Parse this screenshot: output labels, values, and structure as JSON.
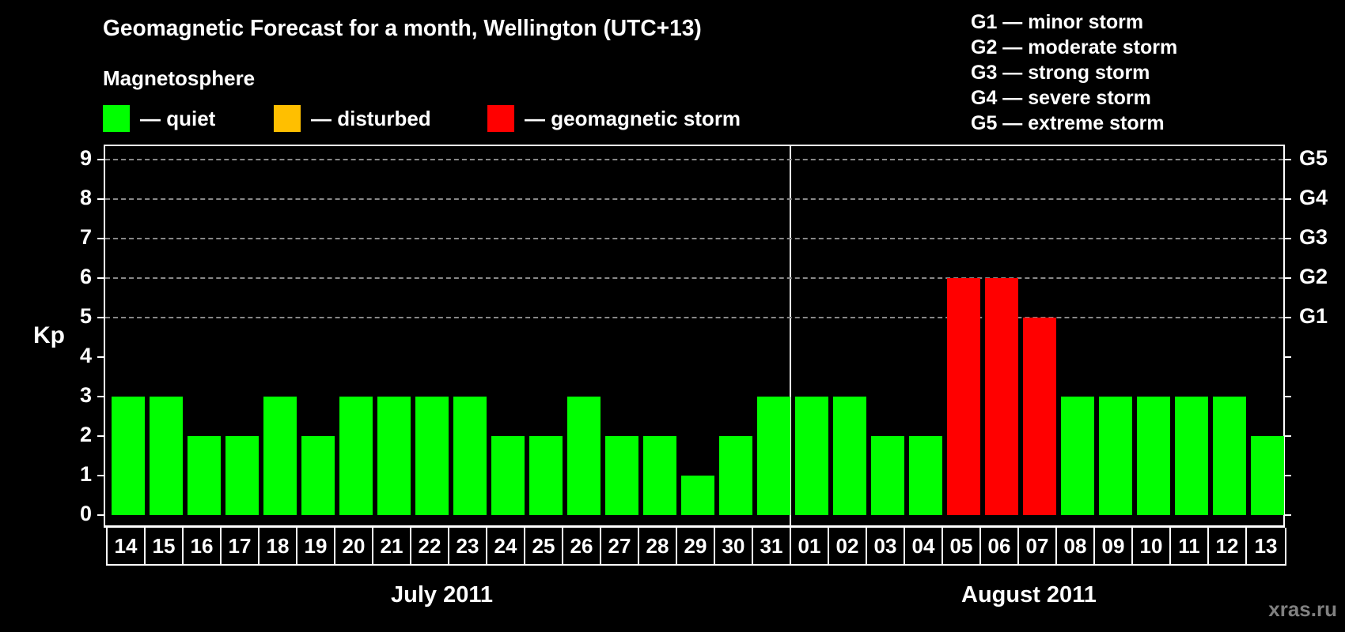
{
  "title": "Geomagnetic Forecast for a month, Wellington (UTC+13)",
  "subtitle": "Magnetosphere",
  "legend": [
    {
      "label": "— quiet",
      "color": "#00ff00"
    },
    {
      "label": "— disturbed",
      "color": "#ffbf00"
    },
    {
      "label": "— geomagnetic storm",
      "color": "#ff0000"
    }
  ],
  "storm_scale": [
    "G1 — minor storm",
    "G2 — moderate storm",
    "G3 — strong storm",
    "G4 — severe storm",
    "G5 — extreme storm"
  ],
  "y_axis_label": "Kp",
  "y_ticks": [
    "0",
    "1",
    "2",
    "3",
    "4",
    "5",
    "6",
    "7",
    "8",
    "9"
  ],
  "g_ticks": [
    {
      "label": "G1",
      "kp": 5
    },
    {
      "label": "G2",
      "kp": 6
    },
    {
      "label": "G3",
      "kp": 7
    },
    {
      "label": "G4",
      "kp": 8
    },
    {
      "label": "G5",
      "kp": 9
    }
  ],
  "months": [
    "July 2011",
    "August 2011"
  ],
  "watermark": "xras.ru",
  "colors": {
    "quiet": "#00ff00",
    "disturbed": "#ffbf00",
    "storm": "#ff0000"
  },
  "chart_data": {
    "type": "bar",
    "title": "Geomagnetic Forecast for a month, Wellington (UTC+13)",
    "xlabel": "July 2011 / August 2011",
    "ylabel": "Kp",
    "ylim": [
      0,
      9
    ],
    "grid": "dashed horizontal lines at Kp 5-9",
    "legend": [
      "quiet",
      "disturbed",
      "geomagnetic storm"
    ],
    "categories": [
      "14",
      "15",
      "16",
      "17",
      "18",
      "19",
      "20",
      "21",
      "22",
      "23",
      "24",
      "25",
      "26",
      "27",
      "28",
      "29",
      "30",
      "31",
      "01",
      "02",
      "03",
      "04",
      "05",
      "06",
      "07",
      "08",
      "09",
      "10",
      "11",
      "12",
      "13"
    ],
    "values": [
      3,
      3,
      2,
      2,
      3,
      2,
      3,
      3,
      3,
      3,
      2,
      2,
      3,
      2,
      2,
      1,
      2,
      3,
      3,
      3,
      2,
      2,
      6,
      6,
      5,
      3,
      3,
      3,
      3,
      3,
      2
    ],
    "status": [
      "quiet",
      "quiet",
      "quiet",
      "quiet",
      "quiet",
      "quiet",
      "quiet",
      "quiet",
      "quiet",
      "quiet",
      "quiet",
      "quiet",
      "quiet",
      "quiet",
      "quiet",
      "quiet",
      "quiet",
      "quiet",
      "quiet",
      "quiet",
      "quiet",
      "quiet",
      "storm",
      "storm",
      "storm",
      "quiet",
      "quiet",
      "quiet",
      "quiet",
      "quiet",
      "quiet"
    ],
    "secondary_axis": {
      "G1": 5,
      "G2": 6,
      "G3": 7,
      "G4": 8,
      "G5": 9
    }
  }
}
